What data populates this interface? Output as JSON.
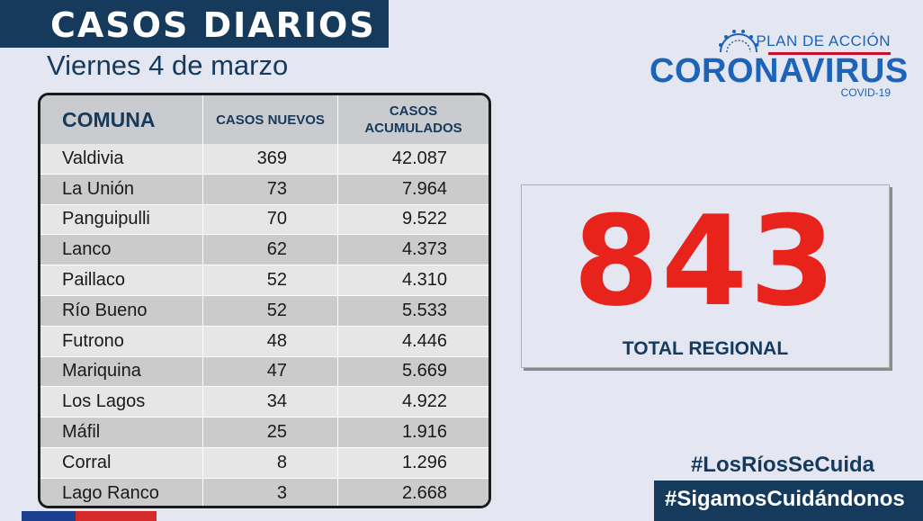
{
  "header": {
    "title": "CASOS DIARIOS",
    "date": "Viernes 4 de marzo"
  },
  "logo": {
    "plan": "PLAN DE ACCIÓN",
    "name": "CORONAVIRUS",
    "sub": "COVID-19",
    "icon": "coronavirus-icon",
    "colors": {
      "blue": "#1d63b8",
      "red": "#c8102e"
    }
  },
  "table": {
    "headers": {
      "comuna": "COMUNA",
      "nuevos": "CASOS NUEVOS",
      "acumulados_1": "CASOS",
      "acumulados_2": "ACUMULADOS"
    },
    "rows": [
      {
        "comuna": "Valdivia",
        "nuevos": "369",
        "acumulados": "42.087"
      },
      {
        "comuna": "La Unión",
        "nuevos": "73",
        "acumulados": "7.964"
      },
      {
        "comuna": "Panguipulli",
        "nuevos": "70",
        "acumulados": "9.522"
      },
      {
        "comuna": "Lanco",
        "nuevos": "62",
        "acumulados": "4.373"
      },
      {
        "comuna": "Paillaco",
        "nuevos": "52",
        "acumulados": "4.310"
      },
      {
        "comuna": "Río Bueno",
        "nuevos": "52",
        "acumulados": "5.533"
      },
      {
        "comuna": "Futrono",
        "nuevos": "48",
        "acumulados": "4.446"
      },
      {
        "comuna": "Mariquina",
        "nuevos": "47",
        "acumulados": "5.669"
      },
      {
        "comuna": "Los Lagos",
        "nuevos": "34",
        "acumulados": "4.922"
      },
      {
        "comuna": "Máfil",
        "nuevos": "25",
        "acumulados": "1.916"
      },
      {
        "comuna": "Corral",
        "nuevos": "8",
        "acumulados": "1.296"
      },
      {
        "comuna": "Lago Ranco",
        "nuevos": "3",
        "acumulados": "2.668"
      }
    ]
  },
  "total": {
    "value": "843",
    "label": "TOTAL REGIONAL",
    "color": "#e8231c"
  },
  "hashtags": {
    "first": "#LosRíosSeCuida",
    "second": "#SigamosCuidándonos"
  },
  "colors": {
    "navy": "#163a5c",
    "background": "#e4e6f2"
  }
}
